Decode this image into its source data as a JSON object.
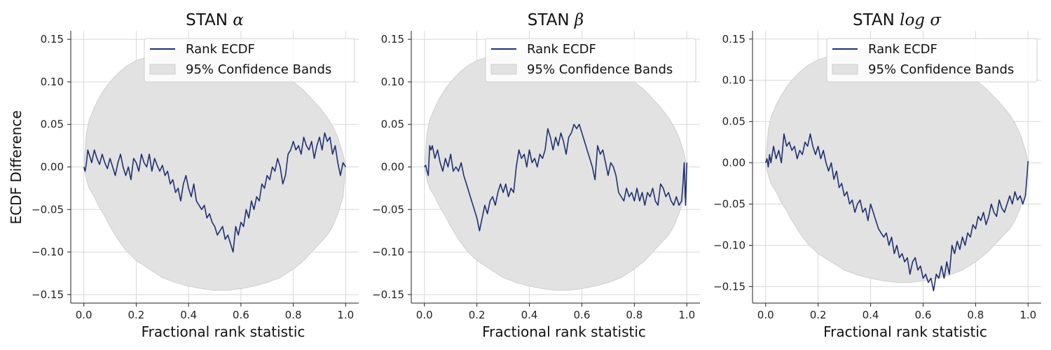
{
  "figure": {
    "ylabel": "ECDF Difference"
  },
  "chart_data": [
    {
      "type": "line",
      "title_prefix": "STAN",
      "title_symbol": "α",
      "xlabel": "Fractional rank statistic",
      "xlim": [
        -0.05,
        1.05
      ],
      "ylim": [
        -0.16,
        0.16
      ],
      "xticks": [
        0.0,
        0.2,
        0.4,
        0.6,
        0.8,
        1.0
      ],
      "xtick_labels": [
        "0.0",
        "0.2",
        "0.4",
        "0.6",
        "0.8",
        "1.0"
      ],
      "yticks": [
        -0.15,
        -0.1,
        -0.05,
        0.0,
        0.05,
        0.1,
        0.15
      ],
      "ytick_labels": [
        "−0.15",
        "−0.10",
        "−0.05",
        "0.00",
        "0.05",
        "0.10",
        "0.15"
      ],
      "grid": true,
      "legend": [
        "Rank ECDF",
        "95% Confidence Bands"
      ],
      "band": {
        "x": [
          0,
          0.01,
          0.02,
          0.04,
          0.06,
          0.08,
          0.1,
          0.13,
          0.16,
          0.2,
          0.25,
          0.3,
          0.35,
          0.4,
          0.45,
          0.5,
          0.55,
          0.6,
          0.65,
          0.7,
          0.75,
          0.8,
          0.84,
          0.87,
          0.9,
          0.93,
          0.95,
          0.97,
          0.98,
          0.99,
          1.0
        ],
        "upper": [
          0.0,
          0.04,
          0.055,
          0.07,
          0.082,
          0.092,
          0.1,
          0.11,
          0.118,
          0.125,
          0.13,
          0.134,
          0.136,
          0.137,
          0.137,
          0.136,
          0.134,
          0.13,
          0.125,
          0.118,
          0.11,
          0.1,
          0.09,
          0.08,
          0.07,
          0.058,
          0.048,
          0.035,
          0.025,
          0.015,
          0.0
        ],
        "lower": [
          0.0,
          -0.015,
          -0.025,
          -0.035,
          -0.048,
          -0.058,
          -0.07,
          -0.085,
          -0.098,
          -0.11,
          -0.12,
          -0.13,
          -0.136,
          -0.14,
          -0.143,
          -0.145,
          -0.145,
          -0.143,
          -0.14,
          -0.136,
          -0.13,
          -0.12,
          -0.11,
          -0.1,
          -0.09,
          -0.08,
          -0.07,
          -0.055,
          -0.045,
          -0.035,
          0.0
        ]
      },
      "series": [
        {
          "name": "Rank ECDF",
          "x": [
            0,
            0.005,
            0.01,
            0.015,
            0.02,
            0.03,
            0.04,
            0.05,
            0.06,
            0.07,
            0.08,
            0.09,
            0.1,
            0.11,
            0.12,
            0.13,
            0.14,
            0.15,
            0.16,
            0.17,
            0.18,
            0.19,
            0.2,
            0.21,
            0.22,
            0.23,
            0.24,
            0.25,
            0.26,
            0.27,
            0.28,
            0.29,
            0.3,
            0.31,
            0.32,
            0.33,
            0.34,
            0.35,
            0.36,
            0.37,
            0.38,
            0.39,
            0.4,
            0.41,
            0.42,
            0.43,
            0.44,
            0.45,
            0.46,
            0.47,
            0.48,
            0.49,
            0.5,
            0.51,
            0.52,
            0.53,
            0.54,
            0.55,
            0.56,
            0.57,
            0.58,
            0.59,
            0.6,
            0.61,
            0.62,
            0.63,
            0.64,
            0.65,
            0.66,
            0.67,
            0.68,
            0.69,
            0.7,
            0.71,
            0.72,
            0.73,
            0.74,
            0.75,
            0.76,
            0.77,
            0.78,
            0.79,
            0.8,
            0.81,
            0.82,
            0.83,
            0.84,
            0.85,
            0.86,
            0.87,
            0.88,
            0.89,
            0.9,
            0.91,
            0.92,
            0.93,
            0.94,
            0.95,
            0.96,
            0.97,
            0.98,
            0.99,
            1.0
          ],
          "values": [
            0.0,
            -0.005,
            0.005,
            0.02,
            0.015,
            0.005,
            0.02,
            0.01,
            0.003,
            0.015,
            0.005,
            -0.002,
            0.01,
            0.0,
            -0.01,
            0.005,
            0.015,
            0.0,
            -0.01,
            0.0,
            -0.015,
            0.01,
            0.005,
            -0.005,
            0.015,
            0.005,
            0.0,
            0.015,
            -0.005,
            0.01,
            0.002,
            -0.005,
            0.002,
            -0.01,
            -0.005,
            -0.02,
            -0.015,
            -0.03,
            -0.025,
            -0.04,
            -0.02,
            -0.01,
            -0.025,
            -0.035,
            -0.02,
            -0.04,
            -0.045,
            -0.05,
            -0.045,
            -0.06,
            -0.055,
            -0.065,
            -0.07,
            -0.08,
            -0.075,
            -0.07,
            -0.085,
            -0.08,
            -0.09,
            -0.1,
            -0.07,
            -0.08,
            -0.065,
            -0.07,
            -0.05,
            -0.06,
            -0.04,
            -0.05,
            -0.035,
            -0.04,
            -0.02,
            -0.025,
            -0.01,
            -0.015,
            0.0,
            -0.005,
            0.01,
            0.0,
            -0.02,
            -0.01,
            0.015,
            0.02,
            0.03,
            0.02,
            0.025,
            0.015,
            0.035,
            0.025,
            0.02,
            0.03,
            0.01,
            0.025,
            0.035,
            0.02,
            0.04,
            0.03,
            0.035,
            0.015,
            0.025,
            0.005,
            -0.01,
            0.005,
            0.0
          ]
        }
      ]
    },
    {
      "type": "line",
      "title_prefix": "STAN",
      "title_symbol": "β",
      "xlabel": "Fractional rank statistic",
      "xlim": [
        -0.05,
        1.05
      ],
      "ylim": [
        -0.16,
        0.16
      ],
      "xticks": [
        0.0,
        0.2,
        0.4,
        0.6,
        0.8,
        1.0
      ],
      "xtick_labels": [
        "0.0",
        "0.2",
        "0.4",
        "0.6",
        "0.8",
        "1.0"
      ],
      "yticks": [
        -0.15,
        -0.1,
        -0.05,
        0.0,
        0.05,
        0.1,
        0.15
      ],
      "ytick_labels": [
        "−0.15",
        "−0.10",
        "−0.05",
        "0.00",
        "0.05",
        "0.10",
        "0.15"
      ],
      "grid": true,
      "legend": [
        "Rank ECDF",
        "95% Confidence Bands"
      ],
      "band": {
        "x": [
          0,
          0.01,
          0.02,
          0.04,
          0.06,
          0.08,
          0.1,
          0.13,
          0.16,
          0.2,
          0.25,
          0.3,
          0.35,
          0.4,
          0.45,
          0.5,
          0.55,
          0.6,
          0.65,
          0.7,
          0.75,
          0.8,
          0.84,
          0.87,
          0.9,
          0.93,
          0.95,
          0.97,
          0.98,
          0.99,
          1.0
        ],
        "upper": [
          0.0,
          0.04,
          0.055,
          0.07,
          0.082,
          0.092,
          0.1,
          0.11,
          0.118,
          0.125,
          0.13,
          0.134,
          0.136,
          0.137,
          0.137,
          0.136,
          0.134,
          0.13,
          0.125,
          0.118,
          0.11,
          0.1,
          0.09,
          0.08,
          0.07,
          0.058,
          0.048,
          0.035,
          0.025,
          0.015,
          0.0
        ],
        "lower": [
          0.0,
          -0.015,
          -0.025,
          -0.035,
          -0.048,
          -0.058,
          -0.07,
          -0.085,
          -0.098,
          -0.11,
          -0.12,
          -0.13,
          -0.136,
          -0.14,
          -0.143,
          -0.145,
          -0.145,
          -0.143,
          -0.14,
          -0.136,
          -0.13,
          -0.12,
          -0.11,
          -0.1,
          -0.09,
          -0.08,
          -0.07,
          -0.055,
          -0.045,
          -0.035,
          0.0
        ]
      },
      "series": [
        {
          "name": "Rank ECDF",
          "x": [
            0,
            0.005,
            0.01,
            0.015,
            0.02,
            0.025,
            0.03,
            0.04,
            0.05,
            0.06,
            0.07,
            0.08,
            0.09,
            0.1,
            0.11,
            0.12,
            0.13,
            0.14,
            0.15,
            0.16,
            0.17,
            0.18,
            0.19,
            0.2,
            0.21,
            0.22,
            0.23,
            0.24,
            0.25,
            0.26,
            0.27,
            0.28,
            0.29,
            0.3,
            0.31,
            0.32,
            0.33,
            0.34,
            0.35,
            0.36,
            0.37,
            0.38,
            0.39,
            0.4,
            0.41,
            0.42,
            0.43,
            0.44,
            0.45,
            0.46,
            0.47,
            0.48,
            0.49,
            0.5,
            0.51,
            0.52,
            0.53,
            0.54,
            0.55,
            0.56,
            0.57,
            0.58,
            0.59,
            0.6,
            0.61,
            0.62,
            0.63,
            0.64,
            0.65,
            0.66,
            0.67,
            0.68,
            0.69,
            0.7,
            0.71,
            0.72,
            0.73,
            0.74,
            0.75,
            0.76,
            0.77,
            0.78,
            0.79,
            0.8,
            0.81,
            0.82,
            0.83,
            0.84,
            0.85,
            0.86,
            0.87,
            0.88,
            0.89,
            0.9,
            0.91,
            0.92,
            0.93,
            0.94,
            0.95,
            0.96,
            0.97,
            0.98,
            0.985,
            0.99,
            0.995,
            1.0
          ],
          "values": [
            0.0,
            0.002,
            -0.005,
            -0.01,
            0.025,
            0.02,
            0.025,
            0.01,
            0.02,
            0.005,
            -0.005,
            0.01,
            0.0,
            0.015,
            -0.005,
            0.0,
            -0.005,
            0.005,
            -0.01,
            -0.02,
            -0.03,
            -0.04,
            -0.05,
            -0.06,
            -0.075,
            -0.06,
            -0.045,
            -0.055,
            -0.04,
            -0.035,
            -0.045,
            -0.03,
            -0.02,
            -0.03,
            -0.02,
            -0.035,
            -0.025,
            -0.03,
            0.0,
            0.02,
            0.01,
            0.015,
            0.0,
            0.02,
            0.005,
            0.01,
            0.0,
            0.015,
            0.01,
            0.02,
            0.045,
            0.035,
            0.02,
            0.035,
            0.025,
            0.04,
            0.03,
            0.015,
            0.035,
            0.04,
            0.05,
            0.045,
            0.05,
            0.04,
            0.03,
            0.02,
            0.01,
            0.0,
            -0.015,
            0.025,
            0.015,
            0.02,
            0.005,
            -0.01,
            0.005,
            0.0,
            -0.01,
            -0.03,
            -0.035,
            -0.04,
            -0.025,
            -0.035,
            -0.03,
            -0.04,
            -0.025,
            -0.04,
            -0.03,
            -0.045,
            -0.03,
            -0.035,
            -0.025,
            -0.04,
            -0.045,
            -0.02,
            -0.025,
            -0.035,
            -0.03,
            -0.04,
            -0.045,
            -0.035,
            -0.045,
            -0.04,
            -0.02,
            0.005,
            -0.045,
            0.005
          ]
        }
      ]
    },
    {
      "type": "line",
      "title_prefix": "STAN",
      "title_symbol": "log σ",
      "xlabel": "Fractional rank statistic",
      "xlim": [
        -0.05,
        1.05
      ],
      "ylim": [
        -0.17,
        0.16
      ],
      "xticks": [
        0.0,
        0.2,
        0.4,
        0.6,
        0.8,
        1.0
      ],
      "xtick_labels": [
        "0.0",
        "0.2",
        "0.4",
        "0.6",
        "0.8",
        "1.0"
      ],
      "yticks": [
        -0.15,
        -0.1,
        -0.05,
        0.0,
        0.05,
        0.1,
        0.15
      ],
      "ytick_labels": [
        "−0.15",
        "−0.10",
        "−0.05",
        "0.00",
        "0.05",
        "0.10",
        "0.15"
      ],
      "grid": true,
      "legend": [
        "Rank ECDF",
        "95% Confidence Bands"
      ],
      "band": {
        "x": [
          0,
          0.01,
          0.02,
          0.04,
          0.06,
          0.08,
          0.1,
          0.13,
          0.16,
          0.2,
          0.25,
          0.3,
          0.35,
          0.4,
          0.45,
          0.5,
          0.55,
          0.6,
          0.65,
          0.7,
          0.75,
          0.8,
          0.84,
          0.87,
          0.9,
          0.93,
          0.95,
          0.97,
          0.98,
          0.99,
          1.0
        ],
        "upper": [
          0.0,
          0.04,
          0.055,
          0.07,
          0.082,
          0.092,
          0.1,
          0.11,
          0.118,
          0.125,
          0.13,
          0.134,
          0.136,
          0.137,
          0.137,
          0.136,
          0.134,
          0.13,
          0.125,
          0.118,
          0.11,
          0.1,
          0.09,
          0.08,
          0.07,
          0.058,
          0.048,
          0.035,
          0.025,
          0.015,
          0.0
        ],
        "lower": [
          0.0,
          -0.015,
          -0.025,
          -0.035,
          -0.048,
          -0.058,
          -0.07,
          -0.085,
          -0.098,
          -0.11,
          -0.12,
          -0.13,
          -0.136,
          -0.14,
          -0.143,
          -0.145,
          -0.145,
          -0.143,
          -0.14,
          -0.136,
          -0.13,
          -0.12,
          -0.11,
          -0.1,
          -0.09,
          -0.08,
          -0.07,
          -0.055,
          -0.045,
          -0.035,
          0.0
        ]
      },
      "series": [
        {
          "name": "Rank ECDF",
          "x": [
            0,
            0.005,
            0.01,
            0.015,
            0.02,
            0.03,
            0.04,
            0.05,
            0.06,
            0.07,
            0.08,
            0.09,
            0.1,
            0.11,
            0.12,
            0.13,
            0.14,
            0.15,
            0.16,
            0.17,
            0.18,
            0.19,
            0.2,
            0.21,
            0.22,
            0.23,
            0.24,
            0.25,
            0.26,
            0.27,
            0.28,
            0.29,
            0.3,
            0.31,
            0.32,
            0.33,
            0.34,
            0.35,
            0.36,
            0.37,
            0.38,
            0.39,
            0.4,
            0.41,
            0.42,
            0.43,
            0.44,
            0.45,
            0.46,
            0.47,
            0.48,
            0.49,
            0.5,
            0.51,
            0.52,
            0.53,
            0.54,
            0.55,
            0.56,
            0.57,
            0.58,
            0.59,
            0.6,
            0.61,
            0.62,
            0.63,
            0.64,
            0.65,
            0.66,
            0.67,
            0.68,
            0.69,
            0.7,
            0.71,
            0.72,
            0.73,
            0.74,
            0.75,
            0.76,
            0.77,
            0.78,
            0.79,
            0.8,
            0.81,
            0.82,
            0.83,
            0.84,
            0.85,
            0.86,
            0.87,
            0.88,
            0.89,
            0.9,
            0.91,
            0.92,
            0.93,
            0.94,
            0.95,
            0.96,
            0.97,
            0.98,
            0.99,
            0.995,
            1.0
          ],
          "values": [
            0.0,
            0.005,
            -0.005,
            0.01,
            0.0,
            0.02,
            0.005,
            0.015,
            0.0,
            0.035,
            0.02,
            0.025,
            0.015,
            0.02,
            0.005,
            0.015,
            0.01,
            0.025,
            0.02,
            0.035,
            0.02,
            0.01,
            0.02,
            0.005,
            0.015,
            0.0,
            -0.01,
            0.0,
            -0.02,
            -0.01,
            -0.03,
            -0.025,
            -0.04,
            -0.035,
            -0.05,
            -0.045,
            -0.06,
            -0.05,
            -0.045,
            -0.06,
            -0.055,
            -0.07,
            -0.05,
            -0.06,
            -0.07,
            -0.08,
            -0.085,
            -0.09,
            -0.085,
            -0.1,
            -0.09,
            -0.11,
            -0.1,
            -0.115,
            -0.11,
            -0.12,
            -0.115,
            -0.135,
            -0.12,
            -0.115,
            -0.13,
            -0.125,
            -0.14,
            -0.135,
            -0.145,
            -0.14,
            -0.155,
            -0.135,
            -0.14,
            -0.125,
            -0.14,
            -0.12,
            -0.135,
            -0.1,
            -0.11,
            -0.095,
            -0.105,
            -0.09,
            -0.1,
            -0.085,
            -0.09,
            -0.075,
            -0.08,
            -0.065,
            -0.07,
            -0.06,
            -0.075,
            -0.065,
            -0.05,
            -0.06,
            -0.065,
            -0.045,
            -0.055,
            -0.06,
            -0.05,
            -0.04,
            -0.05,
            -0.035,
            -0.045,
            -0.04,
            -0.05,
            -0.04,
            -0.02,
            0.002
          ]
        }
      ]
    }
  ]
}
